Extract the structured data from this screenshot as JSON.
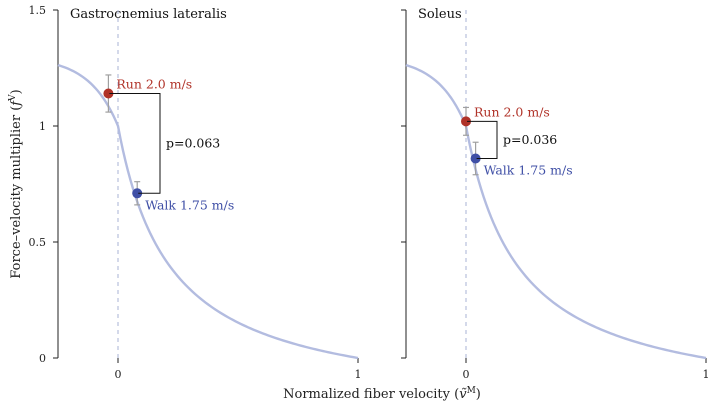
{
  "colors": {
    "curve": "#b3bce0",
    "run": "#b03228",
    "walk": "#3f4fa6",
    "errorbar": "#a0a0a0",
    "zero_line": "#a9b3d6",
    "bracket": "#111111",
    "axis": "#222222"
  },
  "chart_data": [
    {
      "type": "scatter",
      "title": "Gastrocnemius lateralis",
      "xlim": [
        -0.25,
        1
      ],
      "ylim": [
        0,
        1.5
      ],
      "x_ticks": [
        {
          "value": 0,
          "label": "0"
        },
        {
          "value": 1,
          "label": "1"
        }
      ],
      "y_ticks": [
        {
          "value": 0,
          "label": "0"
        },
        {
          "value": 0.5,
          "label": "0.5"
        },
        {
          "value": 1,
          "label": "1"
        },
        {
          "value": 1.5,
          "label": "1.5"
        }
      ],
      "curve": {
        "name": "force-velocity curve"
      },
      "points": [
        {
          "name": "Run 2.0 m/s",
          "x": -0.04,
          "y": 1.14,
          "err": 0.08,
          "series": "run"
        },
        {
          "name": "Walk 1.75 m/s",
          "x": 0.08,
          "y": 0.71,
          "err": 0.05,
          "series": "walk"
        }
      ],
      "annotation": "p=0.063"
    },
    {
      "type": "scatter",
      "title": "Soleus",
      "xlim": [
        -0.25,
        1
      ],
      "ylim": [
        0,
        1.5
      ],
      "x_ticks": [
        {
          "value": 0,
          "label": "0"
        },
        {
          "value": 1,
          "label": "1"
        }
      ],
      "y_ticks": [
        {
          "value": 0,
          "label": ""
        },
        {
          "value": 0.5,
          "label": ""
        },
        {
          "value": 1,
          "label": ""
        },
        {
          "value": 1.5,
          "label": ""
        }
      ],
      "curve": {
        "name": "force-velocity curve"
      },
      "points": [
        {
          "name": "Run 2.0 m/s",
          "x": 0.0,
          "y": 1.02,
          "err": 0.06,
          "series": "run"
        },
        {
          "name": "Walk 1.75 m/s",
          "x": 0.04,
          "y": 0.86,
          "err": 0.07,
          "series": "walk"
        }
      ],
      "annotation": "p=0.036"
    }
  ],
  "labels": {
    "ylabel_text": "Force–velocity multiplier (",
    "ylabel_sym": "f",
    "ylabel_sup": "V",
    "ylabel_close": ")",
    "xlabel_text": "Normalized fiber velocity (",
    "xlabel_sym": "ṽ",
    "xlabel_sup": "M",
    "xlabel_close": ")"
  }
}
